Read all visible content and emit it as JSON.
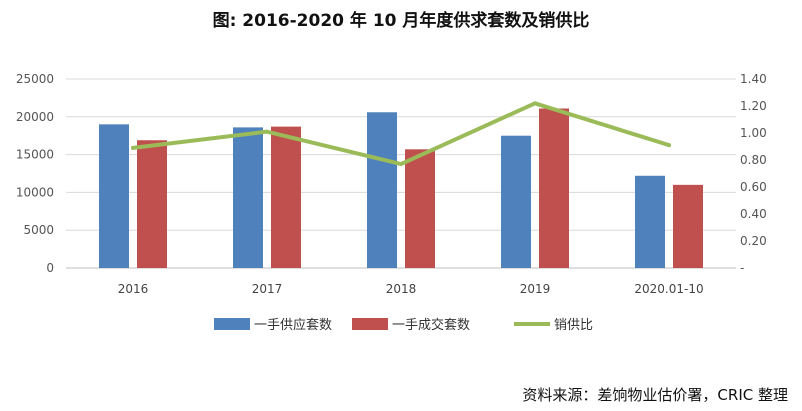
{
  "chart_data": {
    "type": "bar",
    "title": "图: 2016-2020 年 10 月年度供求套数及销供比",
    "categories": [
      "2016",
      "2017",
      "2018",
      "2019",
      "2020.01-10"
    ],
    "series": [
      {
        "name": "一手供应套数",
        "kind": "bar",
        "axis": "left",
        "color": "#4f81bd",
        "values": [
          19000,
          18600,
          20600,
          17500,
          12200
        ]
      },
      {
        "name": "一手成交套数",
        "kind": "bar",
        "axis": "left",
        "color": "#c0504d",
        "values": [
          16900,
          18700,
          15700,
          21100,
          11000
        ]
      },
      {
        "name": "销供比",
        "kind": "line",
        "axis": "right",
        "color": "#9bbb59",
        "values": [
          0.89,
          1.01,
          0.77,
          1.22,
          0.91
        ]
      }
    ],
    "y_left": {
      "min": 0,
      "max": 25000,
      "ticks": [
        "0",
        "5000",
        "10000",
        "15000",
        "20000",
        "25000"
      ]
    },
    "y_right": {
      "min": 0,
      "max": 1.4,
      "ticks": [
        "-",
        "0.20",
        "0.40",
        "0.60",
        "0.80",
        "1.00",
        "1.20",
        "1.40"
      ]
    },
    "grid": true,
    "legend_position": "bottom"
  },
  "source_note": "资料来源：差饷物业估价署，CRIC 整理"
}
